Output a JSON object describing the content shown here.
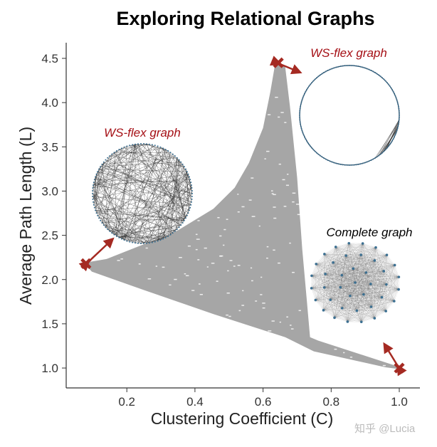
{
  "chart_data": {
    "type": "scatter",
    "title": "Exploring Relational Graphs",
    "xlabel": "Clustering Coefficient (C)",
    "ylabel": "Average Path Length (L)",
    "xlim": [
      0.02,
      1.06
    ],
    "ylim": [
      0.77,
      4.68
    ],
    "xticks": [
      "0.2",
      "0.4",
      "0.6",
      "0.8",
      "1.0"
    ],
    "yticks": [
      "1.0",
      "1.5",
      "2.0",
      "2.5",
      "3.0",
      "3.5",
      "4.0",
      "4.5"
    ],
    "grid": false,
    "point_color": "#a6a6a6",
    "point_cloud_outline": [
      [
        0.08,
        2.18
      ],
      [
        0.141,
        2.22
      ],
      [
        0.246,
        2.38
      ],
      [
        0.351,
        2.545
      ],
      [
        0.456,
        2.79
      ],
      [
        0.519,
        3.03
      ],
      [
        0.561,
        3.31
      ],
      [
        0.603,
        3.71
      ],
      [
        0.624,
        4.11
      ],
      [
        0.637,
        4.4
      ],
      [
        0.645,
        4.45
      ],
      [
        0.662,
        4.4
      ],
      [
        0.676,
        3.95
      ],
      [
        0.697,
        3.15
      ],
      [
        0.712,
        2.34
      ],
      [
        0.725,
        1.78
      ],
      [
        0.735,
        1.34
      ],
      [
        0.76,
        1.3
      ],
      [
        1.0,
        1.0
      ],
      [
        0.96,
        1.02
      ],
      [
        0.75,
        1.2
      ],
      [
        0.666,
        1.36
      ],
      [
        0.456,
        1.62
      ],
      [
        0.246,
        1.9
      ],
      [
        0.099,
        2.1
      ]
    ],
    "highlighted_points": [
      {
        "label": "WS-flex graph",
        "x": 0.08,
        "y": 2.18,
        "color": "#a52a22",
        "label_color": "#a50f15",
        "graph": "random-ring"
      },
      {
        "label": "WS-flex graph",
        "x": 0.645,
        "y": 4.45,
        "color": "#a52a22",
        "label_color": "#a50f15",
        "graph": "ring-lattice"
      },
      {
        "label": "Complete graph",
        "x": 1.0,
        "y": 1.0,
        "color": "#a52a22",
        "label_color": "#000000",
        "graph": "complete"
      }
    ]
  },
  "watermark": "知乎 @Lucia"
}
